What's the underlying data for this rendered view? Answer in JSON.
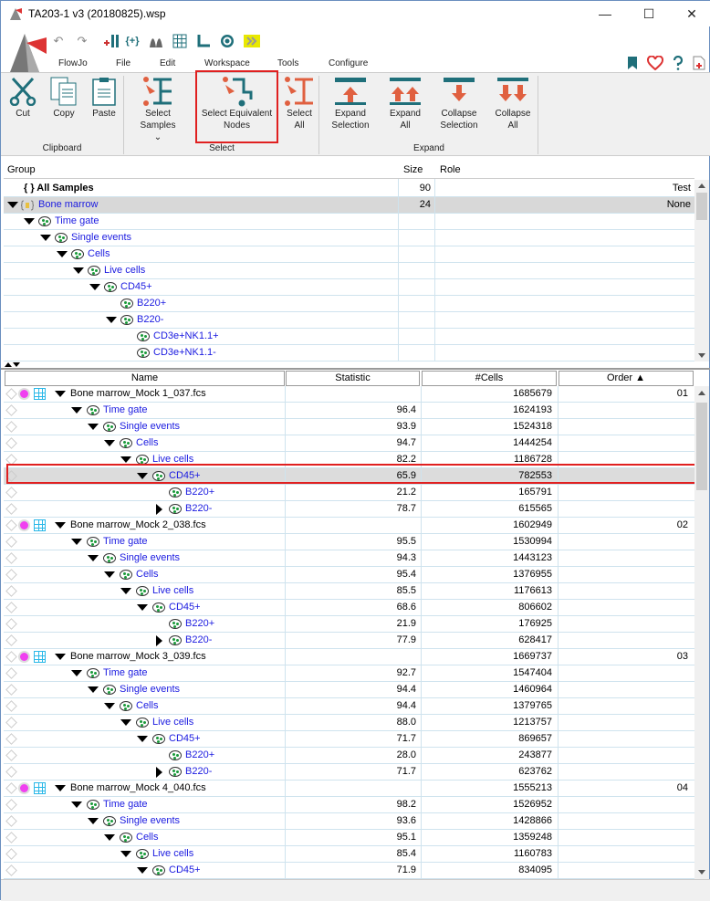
{
  "window": {
    "title": "TA203-1 v3 (20180825).wsp",
    "minimize": "—",
    "maximize": "☐",
    "close": "✕"
  },
  "menu": [
    "FlowJo",
    "File",
    "Edit",
    "Workspace",
    "Tools",
    "Configure"
  ],
  "ribbon": {
    "clipboard": {
      "label": "Clipboard",
      "buttons": [
        "Cut",
        "Copy",
        "Paste"
      ]
    },
    "select": {
      "label": "Select",
      "buttons": [
        "Select Samples ⌄",
        "Select Equivalent Nodes",
        "Select All"
      ]
    },
    "expand": {
      "label": "Expand",
      "buttons": [
        "Expand Selection",
        "Expand All",
        "Collapse Selection",
        "Collapse All"
      ]
    }
  },
  "colors": {
    "accent": "#e06040",
    "teal": "#1f6f7a",
    "link": "#1a1ae0",
    "highlight": "#e02020"
  },
  "groups": {
    "columns": [
      "Group",
      "Size",
      "Role"
    ],
    "rows": [
      {
        "name": "{ } All Samples",
        "level": 0,
        "exp": "none",
        "icon": "group",
        "bold": true,
        "size": "90",
        "role": "Test"
      },
      {
        "name": "Bone marrow",
        "level": 0,
        "exp": "open",
        "icon": "group",
        "size": "24",
        "role": "None",
        "selected": true
      },
      {
        "name": "Time gate",
        "level": 1,
        "exp": "open",
        "icon": "gate"
      },
      {
        "name": "Single events",
        "level": 2,
        "exp": "open",
        "icon": "gate"
      },
      {
        "name": "Cells",
        "level": 3,
        "exp": "open",
        "icon": "gate"
      },
      {
        "name": "Live cells",
        "level": 4,
        "exp": "open",
        "icon": "gate"
      },
      {
        "name": "CD45+",
        "level": 5,
        "exp": "open",
        "icon": "gate"
      },
      {
        "name": "B220+",
        "level": 6,
        "exp": "none",
        "icon": "gate"
      },
      {
        "name": "B220-",
        "level": 6,
        "exp": "open",
        "icon": "gate"
      },
      {
        "name": "CD3e+NK1.1+",
        "level": 7,
        "exp": "none",
        "icon": "gate"
      },
      {
        "name": "CD3e+NK1.1-",
        "level": 7,
        "exp": "none",
        "icon": "gate"
      }
    ]
  },
  "samples": {
    "columns": [
      "Name",
      "Statistic",
      "#Cells",
      "Order ▲"
    ],
    "rows": [
      {
        "name": "Bone marrow_Mock 1_037.fcs",
        "level": 0,
        "exp": "open",
        "sample": true,
        "stat": "",
        "cells": "1685679",
        "order": "01"
      },
      {
        "name": "Time gate",
        "level": 1,
        "exp": "open",
        "stat": "96.4",
        "cells": "1624193"
      },
      {
        "name": "Single events",
        "level": 2,
        "exp": "open",
        "stat": "93.9",
        "cells": "1524318"
      },
      {
        "name": "Cells",
        "level": 3,
        "exp": "open",
        "stat": "94.7",
        "cells": "1444254"
      },
      {
        "name": "Live cells",
        "level": 4,
        "exp": "open",
        "stat": "82.2",
        "cells": "1186728"
      },
      {
        "name": "CD45+",
        "level": 5,
        "exp": "open",
        "stat": "65.9",
        "cells": "782553",
        "selected": true
      },
      {
        "name": "B220+",
        "level": 6,
        "exp": "none",
        "stat": "21.2",
        "cells": "165791"
      },
      {
        "name": "B220-",
        "level": 6,
        "exp": "closed",
        "stat": "78.7",
        "cells": "615565"
      },
      {
        "name": "Bone marrow_Mock 2_038.fcs",
        "level": 0,
        "exp": "open",
        "sample": true,
        "stat": "",
        "cells": "1602949",
        "order": "02"
      },
      {
        "name": "Time gate",
        "level": 1,
        "exp": "open",
        "stat": "95.5",
        "cells": "1530994"
      },
      {
        "name": "Single events",
        "level": 2,
        "exp": "open",
        "stat": "94.3",
        "cells": "1443123"
      },
      {
        "name": "Cells",
        "level": 3,
        "exp": "open",
        "stat": "95.4",
        "cells": "1376955"
      },
      {
        "name": "Live cells",
        "level": 4,
        "exp": "open",
        "stat": "85.5",
        "cells": "1176613"
      },
      {
        "name": "CD45+",
        "level": 5,
        "exp": "open",
        "stat": "68.6",
        "cells": "806602"
      },
      {
        "name": "B220+",
        "level": 6,
        "exp": "none",
        "stat": "21.9",
        "cells": "176925"
      },
      {
        "name": "B220-",
        "level": 6,
        "exp": "closed",
        "stat": "77.9",
        "cells": "628417"
      },
      {
        "name": "Bone marrow_Mock 3_039.fcs",
        "level": 0,
        "exp": "open",
        "sample": true,
        "stat": "",
        "cells": "1669737",
        "order": "03"
      },
      {
        "name": "Time gate",
        "level": 1,
        "exp": "open",
        "stat": "92.7",
        "cells": "1547404"
      },
      {
        "name": "Single events",
        "level": 2,
        "exp": "open",
        "stat": "94.4",
        "cells": "1460964"
      },
      {
        "name": "Cells",
        "level": 3,
        "exp": "open",
        "stat": "94.4",
        "cells": "1379765"
      },
      {
        "name": "Live cells",
        "level": 4,
        "exp": "open",
        "stat": "88.0",
        "cells": "1213757"
      },
      {
        "name": "CD45+",
        "level": 5,
        "exp": "open",
        "stat": "71.7",
        "cells": "869657"
      },
      {
        "name": "B220+",
        "level": 6,
        "exp": "none",
        "stat": "28.0",
        "cells": "243877"
      },
      {
        "name": "B220-",
        "level": 6,
        "exp": "closed",
        "stat": "71.7",
        "cells": "623762"
      },
      {
        "name": "Bone marrow_Mock 4_040.fcs",
        "level": 0,
        "exp": "open",
        "sample": true,
        "stat": "",
        "cells": "1555213",
        "order": "04"
      },
      {
        "name": "Time gate",
        "level": 1,
        "exp": "open",
        "stat": "98.2",
        "cells": "1526952"
      },
      {
        "name": "Single events",
        "level": 2,
        "exp": "open",
        "stat": "93.6",
        "cells": "1428866"
      },
      {
        "name": "Cells",
        "level": 3,
        "exp": "open",
        "stat": "95.1",
        "cells": "1359248"
      },
      {
        "name": "Live cells",
        "level": 4,
        "exp": "open",
        "stat": "85.4",
        "cells": "1160783"
      },
      {
        "name": "CD45+",
        "level": 5,
        "exp": "open",
        "stat": "71.9",
        "cells": "834095"
      }
    ]
  }
}
